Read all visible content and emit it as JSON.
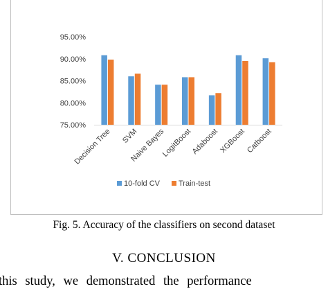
{
  "chart_data": {
    "type": "bar",
    "categories": [
      "Decision Tree",
      "SVM",
      "Naive Bayes",
      "LogitBoost",
      "Adaboost",
      "XGBoost",
      "Catboost"
    ],
    "series": [
      {
        "name": "10-fold CV",
        "values": [
          90.8,
          86.0,
          84.1,
          85.8,
          81.7,
          90.8,
          90.1
        ],
        "color": "#5b9bd5"
      },
      {
        "name": "Train-test",
        "values": [
          89.8,
          86.6,
          84.1,
          85.8,
          82.2,
          89.5,
          89.2
        ],
        "color": "#ed7d31"
      }
    ],
    "ylim": [
      75,
      95
    ],
    "yticks": [
      "75.00%",
      "80.00%",
      "85.00%",
      "90.00%",
      "95.00%"
    ],
    "ytick_values": [
      75,
      80,
      85,
      90,
      95
    ],
    "grid": false,
    "legend_position": "bottom-center"
  },
  "caption": "Fig. 5. Accuracy of the classifiers on second dataset",
  "section_heading": "V.  CONCLUSION",
  "body_text": "this study, we demonstrated the performance"
}
